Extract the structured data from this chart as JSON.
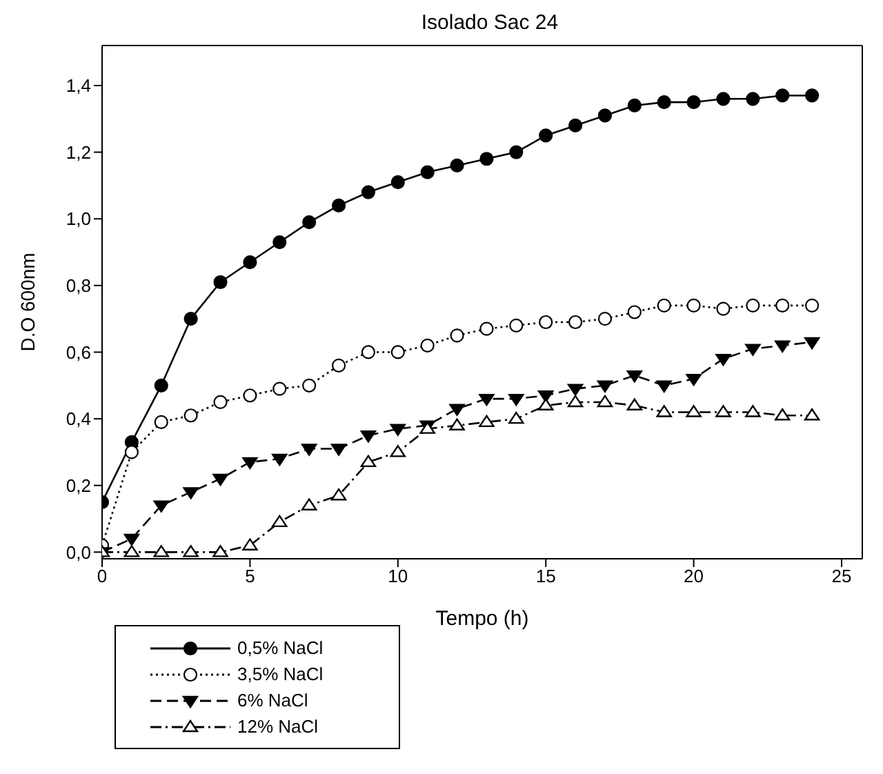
{
  "chart_data": {
    "type": "line",
    "title": "Isolado Sac 24",
    "xlabel": "Tempo (h)",
    "ylabel": "D.O 600nm",
    "x": [
      0,
      1,
      2,
      3,
      4,
      5,
      6,
      7,
      8,
      9,
      10,
      11,
      12,
      13,
      14,
      15,
      16,
      17,
      18,
      19,
      20,
      21,
      22,
      23,
      24
    ],
    "series": [
      {
        "name": "0,5% NaCl",
        "color": "#000000",
        "marker": "circle",
        "line_style": "solid",
        "values": [
          0.15,
          0.33,
          0.5,
          0.7,
          0.81,
          0.87,
          0.93,
          0.99,
          1.04,
          1.08,
          1.11,
          1.14,
          1.16,
          1.18,
          1.2,
          1.25,
          1.28,
          1.31,
          1.34,
          1.35,
          1.35,
          1.36,
          1.36,
          1.37,
          1.37
        ]
      },
      {
        "name": "3,5% NaCl",
        "color": "#000000",
        "marker": "circle",
        "line_style": "dotted",
        "values": [
          0.02,
          0.3,
          0.39,
          0.41,
          0.45,
          0.47,
          0.49,
          0.5,
          0.56,
          0.6,
          0.6,
          0.62,
          0.65,
          0.67,
          0.68,
          0.69,
          0.69,
          0.7,
          0.72,
          0.74,
          0.74,
          0.73,
          0.74,
          0.74,
          0.74
        ]
      },
      {
        "name": "6% NaCl",
        "color": "#000000",
        "marker": "triangle",
        "line_style": "dashed",
        "values": [
          0.0,
          0.04,
          0.14,
          0.18,
          0.22,
          0.27,
          0.28,
          0.31,
          0.31,
          0.35,
          0.37,
          0.38,
          0.43,
          0.46,
          0.46,
          0.47,
          0.49,
          0.5,
          0.53,
          0.5,
          0.52,
          0.58,
          0.61,
          0.62,
          0.63
        ]
      },
      {
        "name": "12% NaCl",
        "color": "#000000",
        "marker": "triangle",
        "line_style": "dashdot",
        "values": [
          0,
          0,
          0,
          0,
          0,
          0.02,
          0.09,
          0.14,
          0.17,
          0.27,
          0.3,
          0.37,
          0.38,
          0.39,
          0.4,
          0.44,
          0.45,
          0.45,
          0.44,
          0.42,
          0.42,
          0.42,
          0.42,
          0.41,
          0.41
        ]
      }
    ],
    "xlim": [
      0,
      25.7
    ],
    "xticks": [
      0,
      5,
      10,
      15,
      20,
      25
    ],
    "ylim": [
      -0.02,
      1.52
    ],
    "yticks": [
      {
        "value": 0,
        "label": "0,0"
      },
      {
        "value": 0.2,
        "label": "0,2"
      },
      {
        "value": 0.4,
        "label": "0,4"
      },
      {
        "value": 0.6,
        "label": "0,6"
      },
      {
        "value": 0.8,
        "label": "0,8"
      },
      {
        "value": 1.0,
        "label": "1,0"
      },
      {
        "value": 1.2,
        "label": "1,2"
      },
      {
        "value": 1.4,
        "label": "1,4"
      }
    ],
    "grid": false,
    "legend": "bottom left"
  }
}
